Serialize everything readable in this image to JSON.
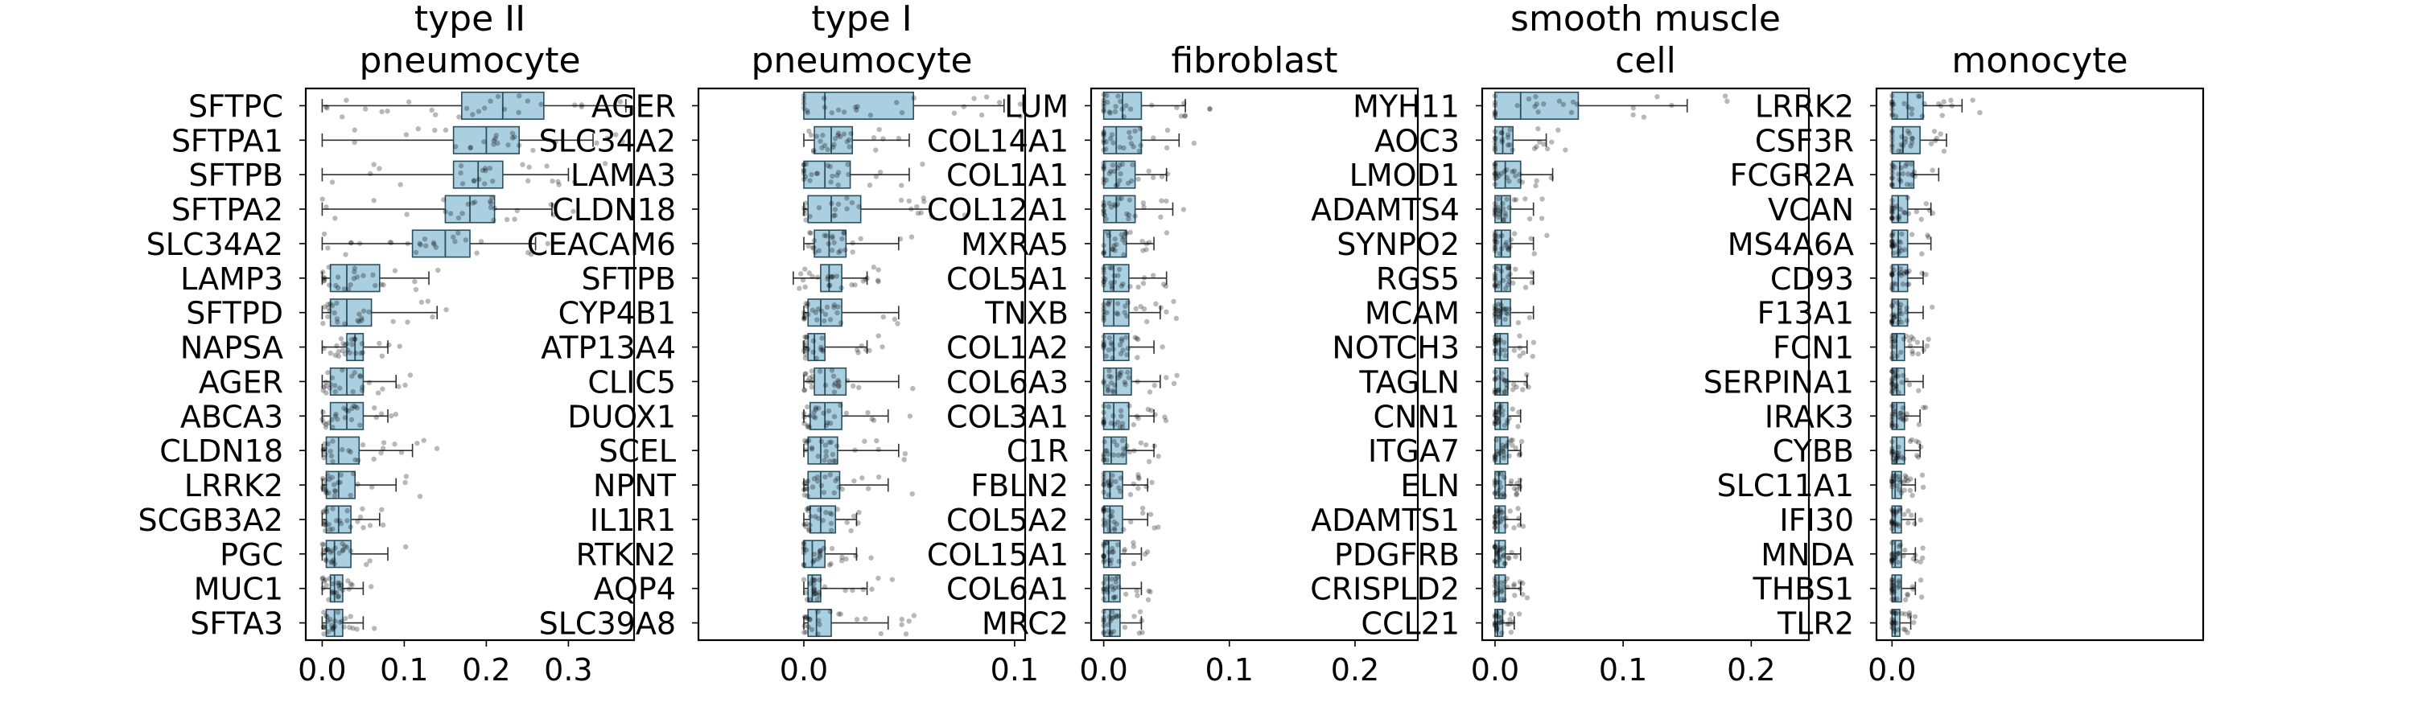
{
  "chart_data": [
    {
      "type": "box",
      "title_lines": [
        "type II",
        "pneumocyte"
      ],
      "xticks": [
        0.0,
        0.1,
        0.2,
        0.3
      ],
      "xtick_labels": [
        "0.0",
        "0.1",
        "0.2",
        "0.3"
      ],
      "xlim": [
        -0.02,
        0.38
      ],
      "genes": [
        "SFTPC",
        "SFTPA1",
        "SFTPB",
        "SFTPA2",
        "SLC34A2",
        "LAMP3",
        "SFTPD",
        "NAPSA",
        "AGER",
        "ABCA3",
        "CLDN18",
        "LRRK2",
        "SCGB3A2",
        "PGC",
        "MUC1",
        "SFTA3"
      ],
      "boxes": [
        [
          0.0,
          0.17,
          0.22,
          0.27,
          0.37
        ],
        [
          0.0,
          0.16,
          0.2,
          0.24,
          0.33
        ],
        [
          0.0,
          0.16,
          0.19,
          0.22,
          0.3
        ],
        [
          0.0,
          0.15,
          0.18,
          0.21,
          0.28
        ],
        [
          0.0,
          0.11,
          0.15,
          0.18,
          0.26
        ],
        [
          0.0,
          0.01,
          0.03,
          0.07,
          0.13
        ],
        [
          0.0,
          0.01,
          0.03,
          0.06,
          0.14
        ],
        [
          0.0,
          0.03,
          0.04,
          0.05,
          0.08
        ],
        [
          0.0,
          0.01,
          0.03,
          0.05,
          0.09
        ],
        [
          0.0,
          0.01,
          0.03,
          0.05,
          0.08
        ],
        [
          0.0,
          0.005,
          0.02,
          0.045,
          0.11
        ],
        [
          0.0,
          0.005,
          0.02,
          0.04,
          0.09
        ],
        [
          0.0,
          0.005,
          0.02,
          0.035,
          0.07
        ],
        [
          0.0,
          0.005,
          0.015,
          0.035,
          0.08
        ],
        [
          0.0,
          0.01,
          0.015,
          0.025,
          0.05
        ],
        [
          0.0,
          0.005,
          0.015,
          0.025,
          0.05
        ]
      ]
    },
    {
      "type": "box",
      "title_lines": [
        "type I",
        "pneumocyte"
      ],
      "xticks": [
        0.0,
        0.1
      ],
      "xtick_labels": [
        "0.0",
        "0.1"
      ],
      "xlim": [
        -0.05,
        0.105
      ],
      "genes": [
        "AGER",
        "SLC34A2",
        "LAMA3",
        "CLDN18",
        "CEACAM6",
        "SFTPB",
        "CYP4B1",
        "ATP13A4",
        "CLIC5",
        "DUOX1",
        "SCEL",
        "NPNT",
        "IL1R1",
        "RTKN2",
        "AQP4",
        "SLC39A8"
      ],
      "boxes": [
        [
          0.0,
          0.0,
          0.01,
          0.052,
          0.095
        ],
        [
          0.0,
          0.005,
          0.013,
          0.023,
          0.05
        ],
        [
          0.0,
          0.0,
          0.01,
          0.022,
          0.05
        ],
        [
          0.0,
          0.002,
          0.013,
          0.027,
          0.06
        ],
        [
          0.0,
          0.005,
          0.012,
          0.02,
          0.045
        ],
        [
          -0.005,
          0.008,
          0.012,
          0.018,
          0.03
        ],
        [
          0.0,
          0.002,
          0.008,
          0.018,
          0.045
        ],
        [
          0.0,
          0.002,
          0.005,
          0.01,
          0.03
        ],
        [
          0.0,
          0.005,
          0.01,
          0.02,
          0.045
        ],
        [
          0.0,
          0.003,
          0.01,
          0.018,
          0.04
        ],
        [
          0.0,
          0.002,
          0.008,
          0.016,
          0.045
        ],
        [
          0.0,
          0.002,
          0.008,
          0.017,
          0.04
        ],
        [
          0.0,
          0.003,
          0.008,
          0.015,
          0.025
        ],
        [
          0.0,
          0.0,
          0.004,
          0.01,
          0.025
        ],
        [
          0.0,
          0.002,
          0.004,
          0.008,
          0.03
        ],
        [
          0.0,
          0.002,
          0.006,
          0.013,
          0.04
        ]
      ]
    },
    {
      "type": "box",
      "title_lines": [
        "fibroblast"
      ],
      "xticks": [
        0.0,
        0.1,
        0.2
      ],
      "xtick_labels": [
        "0.0",
        "0.1",
        "0.2"
      ],
      "xlim": [
        -0.01,
        0.25
      ],
      "genes": [
        "LUM",
        "COL14A1",
        "COL1A1",
        "COL12A1",
        "MXRA5",
        "COL5A1",
        "TNXB",
        "COL1A2",
        "COL6A3",
        "COL3A1",
        "C1R",
        "FBLN2",
        "COL5A2",
        "COL15A1",
        "COL6A1",
        "MRC2"
      ],
      "boxes": [
        [
          0.0,
          0.0,
          0.015,
          0.03,
          0.065
        ],
        [
          0.0,
          0.0,
          0.01,
          0.03,
          0.06
        ],
        [
          0.0,
          0.0,
          0.01,
          0.025,
          0.05
        ],
        [
          0.0,
          0.0,
          0.01,
          0.025,
          0.055
        ],
        [
          0.0,
          0.0,
          0.005,
          0.018,
          0.04
        ],
        [
          0.0,
          0.0,
          0.008,
          0.02,
          0.05
        ],
        [
          0.0,
          0.0,
          0.008,
          0.02,
          0.045
        ],
        [
          0.0,
          0.0,
          0.008,
          0.02,
          0.04
        ],
        [
          0.0,
          0.0,
          0.01,
          0.022,
          0.045
        ],
        [
          0.0,
          0.0,
          0.008,
          0.02,
          0.04
        ],
        [
          0.0,
          0.0,
          0.006,
          0.018,
          0.04
        ],
        [
          0.0,
          0.0,
          0.005,
          0.015,
          0.035
        ],
        [
          0.0,
          0.0,
          0.005,
          0.015,
          0.035
        ],
        [
          0.0,
          0.0,
          0.004,
          0.013,
          0.03
        ],
        [
          0.0,
          0.0,
          0.004,
          0.013,
          0.03
        ],
        [
          0.0,
          0.0,
          0.005,
          0.013,
          0.03
        ]
      ]
    },
    {
      "type": "box",
      "title_lines": [
        "smooth muscle",
        "cell"
      ],
      "xticks": [
        0.0,
        0.1,
        0.2
      ],
      "xtick_labels": [
        "0.0",
        "0.1",
        "0.2"
      ],
      "xlim": [
        -0.01,
        0.245
      ],
      "genes": [
        "MYH11",
        "AOC3",
        "LMOD1",
        "ADAMTS4",
        "SYNPO2",
        "RGS5",
        "MCAM",
        "NOTCH3",
        "TAGLN",
        "CNN1",
        "ITGA7",
        "ELN",
        "ADAMTS1",
        "PDGFRB",
        "CRISPLD2",
        "CCL21"
      ],
      "boxes": [
        [
          0.0,
          0.0,
          0.02,
          0.065,
          0.15
        ],
        [
          0.0,
          0.0,
          0.006,
          0.014,
          0.04
        ],
        [
          0.0,
          0.0,
          0.008,
          0.02,
          0.045
        ],
        [
          0.0,
          0.0,
          0.005,
          0.012,
          0.03
        ],
        [
          0.0,
          0.0,
          0.005,
          0.012,
          0.03
        ],
        [
          0.0,
          0.0,
          0.005,
          0.012,
          0.03
        ],
        [
          0.0,
          0.0,
          0.005,
          0.012,
          0.03
        ],
        [
          0.0,
          0.0,
          0.004,
          0.01,
          0.025
        ],
        [
          0.0,
          0.0,
          0.004,
          0.01,
          0.025
        ],
        [
          0.0,
          0.0,
          0.004,
          0.01,
          0.02
        ],
        [
          0.0,
          0.0,
          0.004,
          0.01,
          0.02
        ],
        [
          0.0,
          0.0,
          0.003,
          0.008,
          0.02
        ],
        [
          0.0,
          0.0,
          0.003,
          0.008,
          0.02
        ],
        [
          0.0,
          0.0,
          0.003,
          0.008,
          0.02
        ],
        [
          0.0,
          0.0,
          0.003,
          0.008,
          0.02
        ],
        [
          0.0,
          0.0,
          0.002,
          0.006,
          0.015
        ]
      ]
    },
    {
      "type": "box",
      "title_lines": [
        "monocyte"
      ],
      "xticks": [
        0.0
      ],
      "xtick_labels": [
        "0.0"
      ],
      "xlim": [
        -0.01,
        0.2
      ],
      "genes": [
        "LRRK2",
        "CSF3R",
        "FCGR2A",
        "VCAN",
        "MS4A6A",
        "CD93",
        "F13A1",
        "FCN1",
        "SERPINA1",
        "IRAK3",
        "CYBB",
        "SLC11A1",
        "IFI30",
        "MNDA",
        "THBS1",
        "TLR2"
      ],
      "boxes": [
        [
          0.0,
          0.0,
          0.01,
          0.02,
          0.045
        ],
        [
          0.0,
          0.0,
          0.007,
          0.018,
          0.035
        ],
        [
          0.0,
          0.0,
          0.005,
          0.014,
          0.03
        ],
        [
          0.0,
          0.0,
          0.004,
          0.01,
          0.025
        ],
        [
          0.0,
          0.0,
          0.004,
          0.01,
          0.025
        ],
        [
          0.0,
          0.0,
          0.004,
          0.01,
          0.02
        ],
        [
          0.0,
          0.0,
          0.004,
          0.01,
          0.02
        ],
        [
          0.0,
          0.0,
          0.003,
          0.008,
          0.02
        ],
        [
          0.0,
          0.0,
          0.003,
          0.008,
          0.02
        ],
        [
          0.0,
          0.0,
          0.003,
          0.008,
          0.018
        ],
        [
          0.0,
          0.0,
          0.003,
          0.008,
          0.018
        ],
        [
          0.0,
          0.0,
          0.002,
          0.006,
          0.015
        ],
        [
          0.0,
          0.0,
          0.002,
          0.006,
          0.015
        ],
        [
          0.0,
          0.0,
          0.002,
          0.006,
          0.015
        ],
        [
          0.0,
          0.0,
          0.002,
          0.006,
          0.015
        ],
        [
          0.0,
          0.0,
          0.002,
          0.005,
          0.012
        ]
      ]
    }
  ],
  "colors": {
    "box_fill": "#a9cfe0",
    "box_edge": "#2b5060",
    "whisker": "#333333",
    "point": "#000000",
    "frame": "#000000"
  }
}
